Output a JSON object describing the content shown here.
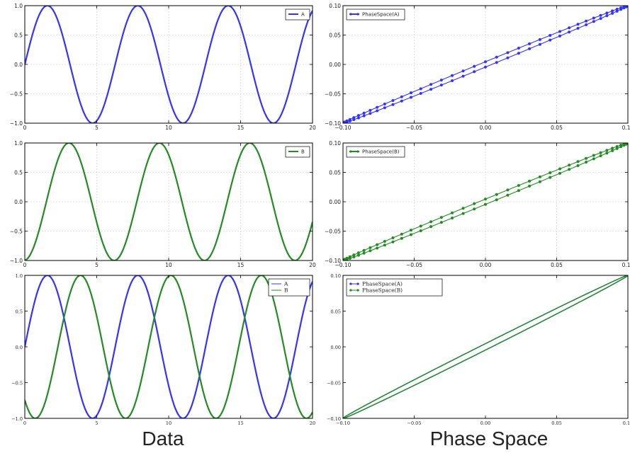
{
  "captions": {
    "left": "Data",
    "right": "Phase Space"
  },
  "colors": {
    "blue": "#3333ff",
    "green": "#228b22",
    "grid": "#c8c8c8",
    "frame": "#000000"
  },
  "chart_data": [
    {
      "id": "data-a",
      "type": "line",
      "function": "sin(x)",
      "xlim": [
        0,
        20
      ],
      "ylim": [
        -1,
        1
      ],
      "xticks": [
        "0",
        "5",
        "10",
        "15",
        "20"
      ],
      "yticks": [
        "-1.0",
        "-0.5",
        "0.0",
        "0.5",
        "1.0"
      ],
      "legend": "top-right",
      "grid": true,
      "series": [
        {
          "name": "A",
          "color": "#3333ff",
          "phase": 0
        }
      ]
    },
    {
      "id": "phase-a",
      "type": "scatter",
      "xlim": [
        -0.1,
        0.1
      ],
      "ylim": [
        -0.1,
        0.1
      ],
      "xticks": [
        "-0.10",
        "-0.05",
        "0.00",
        "0.05",
        "0.10"
      ],
      "yticks": [
        "-0.10",
        "-0.05",
        "0.00",
        "0.05",
        "0.10"
      ],
      "legend": "top-left",
      "grid": true,
      "series": [
        {
          "name": "PhaseSpace(A)",
          "color": "#3333ff",
          "markers": true
        }
      ]
    },
    {
      "id": "data-b",
      "type": "line",
      "function": "sin(x - 1.5)",
      "xlim": [
        0,
        20
      ],
      "ylim": [
        -1,
        1
      ],
      "xticks": [
        "0",
        "5",
        "10",
        "15",
        "20"
      ],
      "yticks": [
        "-1.0",
        "-0.5",
        "0.0",
        "0.5",
        "1.0"
      ],
      "legend": "top-right",
      "grid": true,
      "series": [
        {
          "name": "B",
          "color": "#228b22",
          "phase": 1.5
        }
      ]
    },
    {
      "id": "phase-b",
      "type": "scatter",
      "xlim": [
        -0.1,
        0.1
      ],
      "ylim": [
        -0.1,
        0.1
      ],
      "xticks": [
        "-0.10",
        "-0.05",
        "0.00",
        "0.05",
        "0.10"
      ],
      "yticks": [
        "-0.10",
        "-0.05",
        "0.00",
        "0.05",
        "0.10"
      ],
      "legend": "top-left",
      "grid": true,
      "series": [
        {
          "name": "PhaseSpace(B)",
          "color": "#228b22",
          "markers": true
        }
      ]
    },
    {
      "id": "data-ab",
      "type": "line",
      "xlim": [
        0,
        20
      ],
      "ylim": [
        -1,
        1
      ],
      "xticks": [
        "0",
        "5",
        "10",
        "15",
        "20"
      ],
      "yticks": [
        "-1.0",
        "-0.5",
        "0.0",
        "0.5",
        "1.0"
      ],
      "legend": "top-right",
      "grid": false,
      "series": [
        {
          "name": "A",
          "color": "#3333ff",
          "phase": 0
        },
        {
          "name": "B",
          "color": "#228b22",
          "phase": 2.3
        }
      ]
    },
    {
      "id": "phase-ab",
      "type": "line",
      "xlim": [
        -0.1,
        0.1
      ],
      "ylim": [
        -0.1,
        0.1
      ],
      "xticks": [
        "-0.10",
        "-0.05",
        "0.00",
        "0.05",
        "0.10"
      ],
      "yticks": [
        "-0.10",
        "-0.05",
        "0.00",
        "0.05",
        "0.10"
      ],
      "legend": "top-left",
      "grid": false,
      "series": [
        {
          "name": "PhaseSpace(A)",
          "color": "#3333ff"
        },
        {
          "name": "PhaseSpace(B)",
          "color": "#228b22"
        }
      ]
    }
  ]
}
